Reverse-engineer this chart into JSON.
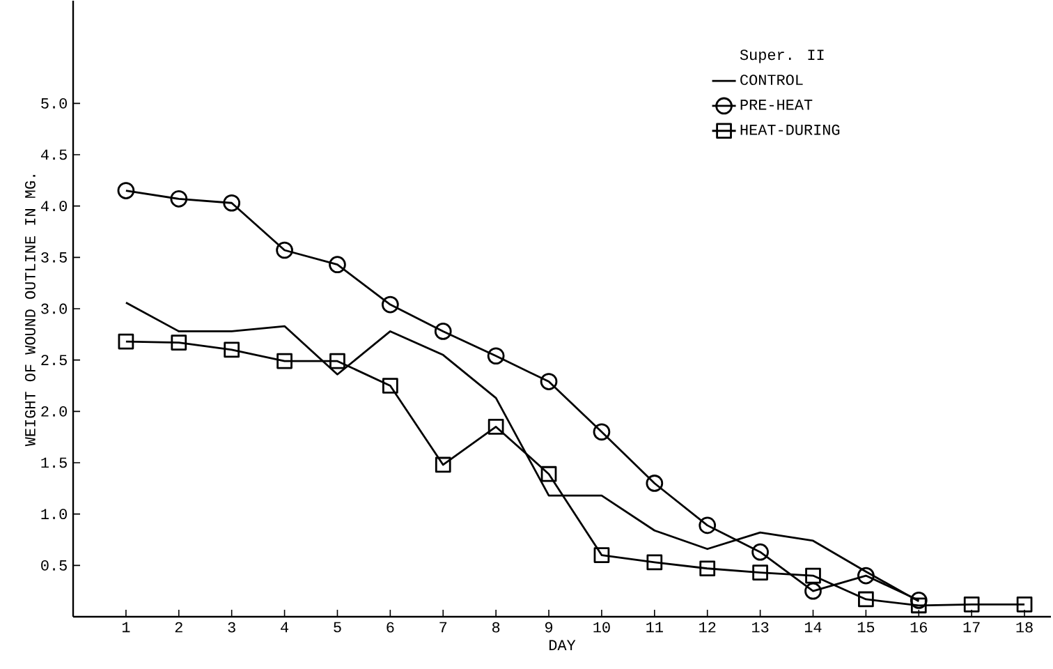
{
  "chart_data": {
    "type": "line",
    "xlabel": "DAY",
    "ylabel": "WEIGHT OF WOUND OUTLINE IN MG.",
    "legend_title": "Super. II",
    "x": [
      1,
      2,
      3,
      4,
      5,
      6,
      7,
      8,
      9,
      10,
      11,
      12,
      13,
      14,
      15,
      16,
      17,
      18
    ],
    "series": [
      {
        "name": "CONTROL",
        "color": "#000000",
        "marker": "none",
        "values": [
          3.06,
          2.78,
          2.78,
          2.83,
          2.36,
          2.78,
          2.55,
          2.13,
          1.18,
          1.18,
          0.84,
          0.66,
          0.82,
          0.74,
          0.44,
          0.15,
          null,
          null
        ]
      },
      {
        "name": "PRE-HEAT",
        "color": "#000000",
        "marker": "circle",
        "values": [
          4.15,
          4.07,
          4.03,
          3.57,
          3.43,
          3.04,
          2.78,
          2.54,
          2.29,
          1.8,
          1.3,
          0.89,
          0.63,
          0.25,
          0.4,
          0.16,
          null,
          null
        ]
      },
      {
        "name": "HEAT-DURING",
        "color": "#000000",
        "marker": "square",
        "values": [
          2.68,
          2.67,
          2.6,
          2.49,
          2.49,
          2.25,
          1.48,
          1.85,
          1.39,
          0.6,
          0.53,
          0.47,
          0.43,
          0.4,
          0.17,
          0.11,
          0.12,
          0.12
        ]
      }
    ],
    "xlim": [
      0,
      18.5
    ],
    "ylim": [
      0,
      6.0
    ],
    "xticks": [
      1,
      2,
      3,
      4,
      5,
      6,
      7,
      8,
      9,
      10,
      11,
      12,
      13,
      14,
      15,
      16,
      17,
      18
    ],
    "yticks": [
      0.5,
      {
        "value": 1.0,
        "label": "1.0"
      },
      1.5,
      {
        "value": 2.0,
        "label": "2.0"
      },
      2.5,
      {
        "value": 3.0,
        "label": "3.0"
      },
      3.5,
      {
        "value": 4.0,
        "label": "4.0"
      },
      4.5,
      {
        "value": 5.0,
        "label": "5.0"
      }
    ],
    "legend": "top right",
    "grid": false,
    "line_style": "solid"
  }
}
